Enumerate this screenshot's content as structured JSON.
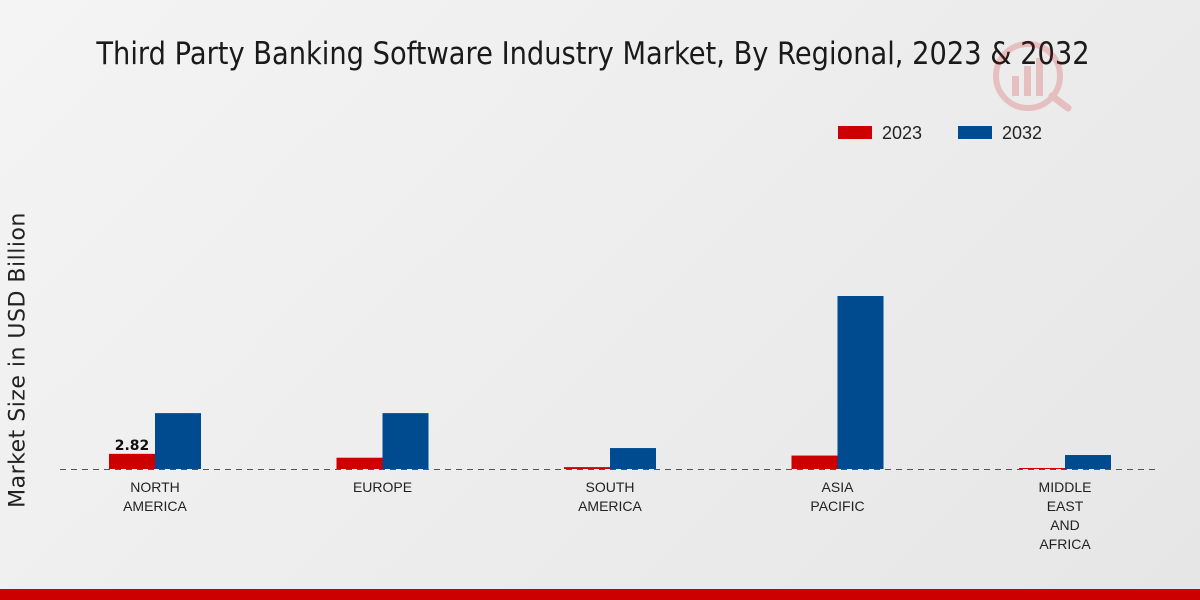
{
  "chart_data": {
    "type": "bar",
    "title": "Third Party Banking Software Industry Market, By Regional, 2023 & 2032",
    "xlabel": "",
    "ylabel": "Market Size in USD Billion",
    "categories": [
      [
        "NORTH",
        "AMERICA"
      ],
      [
        "EUROPE"
      ],
      [
        "SOUTH",
        "AMERICA"
      ],
      [
        "ASIA",
        "PACIFIC"
      ],
      [
        "MIDDLE",
        "EAST",
        "AND",
        "AFRICA"
      ]
    ],
    "series": [
      {
        "name": "2023",
        "color": "#cc0000",
        "values": [
          2.82,
          2.1,
          0.35,
          2.5,
          0.12
        ]
      },
      {
        "name": "2032",
        "color": "#004a8f",
        "values": [
          10.4,
          10.4,
          3.9,
          32.2,
          2.6
        ]
      }
    ],
    "data_labels": [
      {
        "series": 0,
        "index": 0,
        "text": "2.82"
      }
    ],
    "ylim": [
      0,
      40
    ],
    "grid": false,
    "legend_position": "top-right",
    "baseline": "dashed"
  },
  "colors": {
    "accent_bar": "#cc0000"
  },
  "watermark_icon": "bar-chart-logo-icon"
}
